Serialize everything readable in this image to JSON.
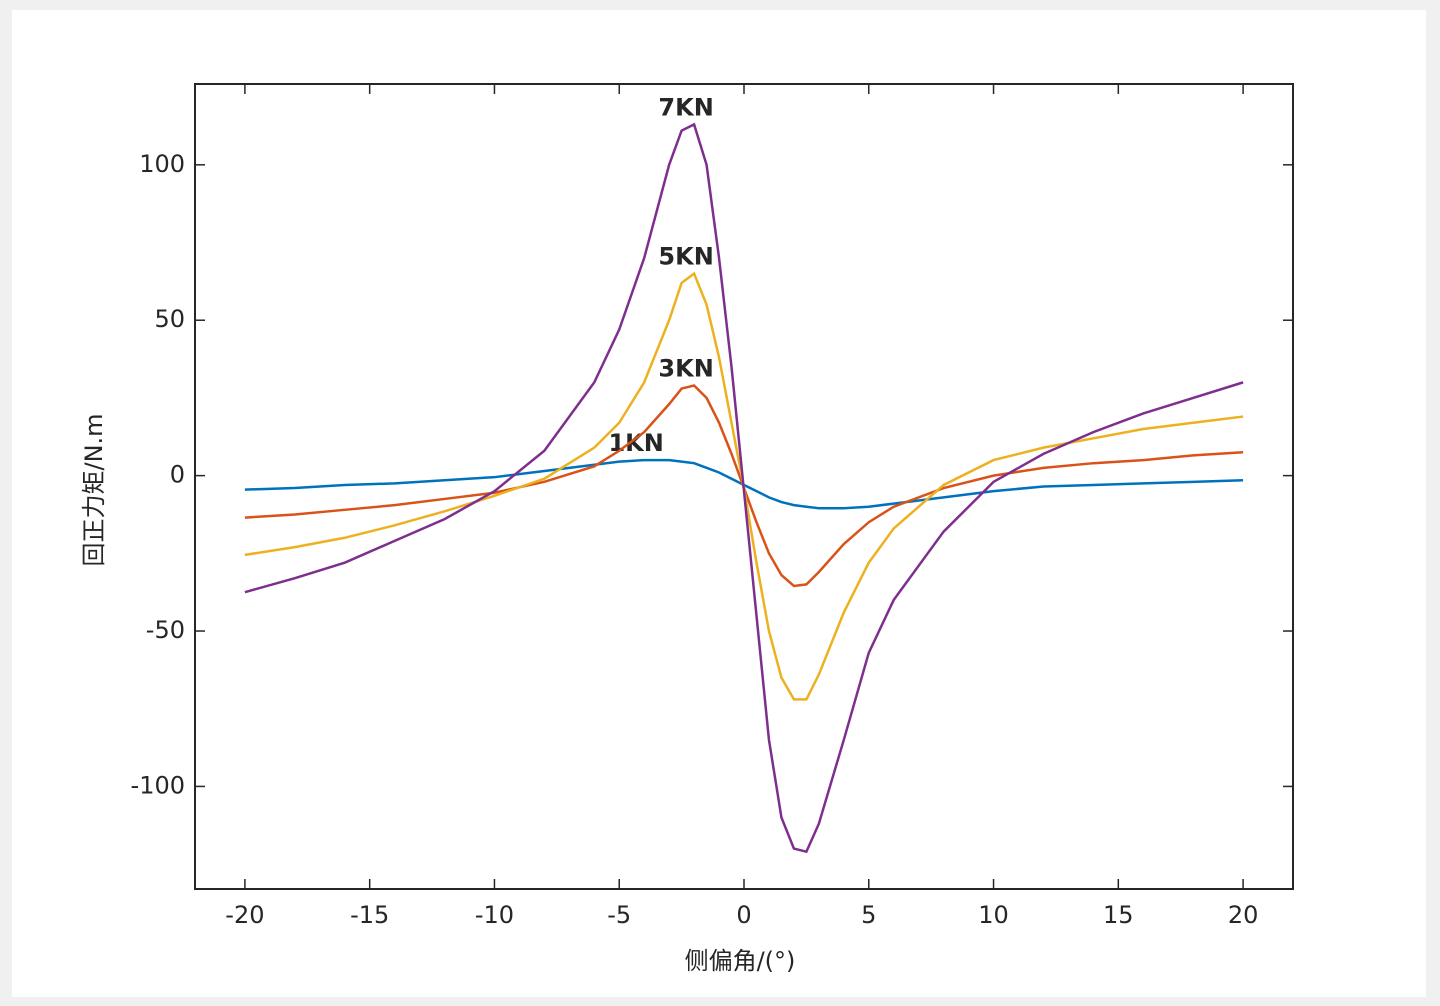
{
  "chart_data": {
    "type": "line",
    "xlabel": "侧偏角/(°)",
    "ylabel": "回正力矩/N.m",
    "x": [
      -20,
      -18,
      -16,
      -14,
      -12,
      -10,
      -8,
      -6,
      -5,
      -4,
      -3,
      -2.5,
      -2,
      -1.5,
      -1,
      -0.5,
      0,
      0.5,
      1,
      1.5,
      2,
      2.5,
      3,
      4,
      5,
      6,
      8,
      10,
      12,
      14,
      16,
      18,
      20
    ],
    "series": [
      {
        "name": "1KN",
        "color": "#0072bd",
        "values": [
          -4.5,
          -4,
          -3,
          -2.5,
          -1.5,
          -0.5,
          1.5,
          3.5,
          4.5,
          5,
          5,
          4.5,
          4,
          2.5,
          1,
          -1,
          -3,
          -5,
          -7,
          -8.5,
          -9.5,
          -10,
          -10.5,
          -10.5,
          -10,
          -9,
          -7,
          -5,
          -3.5,
          -3,
          -2.5,
          -2,
          -1.5
        ]
      },
      {
        "name": "3KN",
        "color": "#d95319",
        "values": [
          -13.5,
          -12.5,
          -11,
          -9.5,
          -7.5,
          -5.5,
          -2,
          3,
          8,
          14,
          23,
          28,
          29,
          25,
          17,
          7,
          -4,
          -15,
          -25,
          -32,
          -35.5,
          -35,
          -31,
          -22,
          -15,
          -10,
          -4,
          0,
          2.5,
          4,
          5,
          6.5,
          7.5
        ]
      },
      {
        "name": "5KN",
        "color": "#edb120",
        "values": [
          -25.5,
          -23,
          -20,
          -16,
          -11.5,
          -6.5,
          -1,
          9,
          17,
          30,
          50,
          62,
          65,
          55,
          38,
          17,
          -4,
          -28,
          -50,
          -65,
          -72,
          -72,
          -64,
          -44,
          -28,
          -17,
          -3,
          5,
          9,
          12,
          15,
          17,
          19
        ]
      },
      {
        "name": "7KN",
        "color": "#7e2f8e",
        "values": [
          -37.5,
          -33,
          -28,
          -21,
          -14,
          -5,
          8,
          30,
          47,
          70,
          100,
          111,
          113,
          100,
          70,
          35,
          -5,
          -45,
          -85,
          -110,
          -120,
          -121,
          -112,
          -85,
          -57,
          -40,
          -18,
          -2,
          7,
          14,
          20,
          25,
          30
        ]
      }
    ],
    "xlim": [
      -22,
      22
    ],
    "xticks": [
      -20,
      -15,
      -10,
      -5,
      0,
      5,
      10,
      15,
      20
    ],
    "ylim": [
      -133,
      126
    ],
    "yticks": [
      -100,
      -50,
      0,
      50,
      100
    ]
  }
}
